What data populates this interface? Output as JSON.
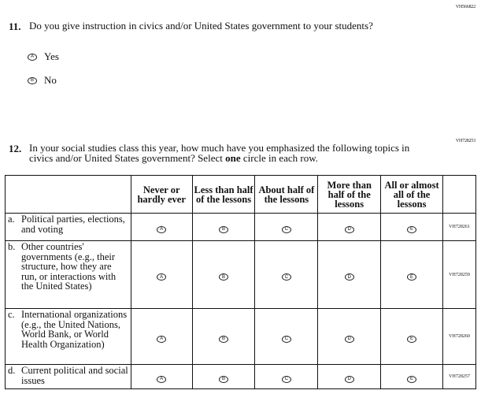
{
  "q11": {
    "code": "VH566822",
    "number": "11.",
    "text": "Do you give instruction in civics and/or United States government to your students?",
    "options": [
      {
        "letter": "A",
        "label": "Yes"
      },
      {
        "letter": "B",
        "label": "No"
      }
    ]
  },
  "q12": {
    "code": "VH728253",
    "number": "12.",
    "text_before": "In your social studies class this year, how much have you emphasized the following topics in civics and/or United States government? Select ",
    "text_bold": "one",
    "text_after": " circle in each row.",
    "columns": [
      "Never or hardly ever",
      "Less than half of the lessons",
      "About half of the lessons",
      "More than half of the lessons",
      "All or almost all of the lessons"
    ],
    "letters": [
      "A",
      "B",
      "C",
      "D",
      "E"
    ],
    "rows": [
      {
        "letter": "a.",
        "label": "Political parties, elections, and voting",
        "code": "VH728261"
      },
      {
        "letter": "b.",
        "label": "Other countries' governments (e.g., their structure, how they are run, or interactions with the United States)",
        "code": "VH728259"
      },
      {
        "letter": "c.",
        "label": "International organizations (e.g., the United Nations, World Bank, or World Health Organization)",
        "code": "VH728260"
      },
      {
        "letter": "d.",
        "label": "Current political and social issues",
        "code": "VH728257"
      }
    ]
  }
}
